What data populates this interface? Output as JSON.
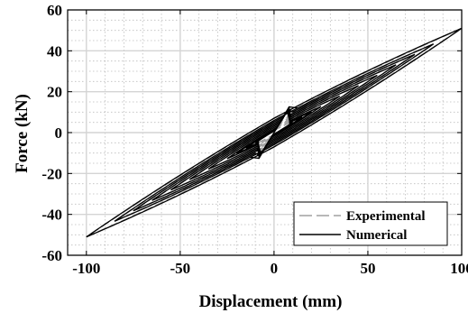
{
  "chart_data": {
    "type": "line",
    "xlabel": "Displacement (mm)",
    "ylabel": "Force (kN)",
    "xlim": [
      -110,
      100
    ],
    "ylim": [
      -60,
      60
    ],
    "x_ticks": [
      -100,
      -50,
      0,
      50,
      100
    ],
    "y_ticks": [
      -60,
      -40,
      -20,
      0,
      20,
      40,
      60
    ],
    "x_tick_labels": [
      "-100",
      "-50",
      "0",
      "50",
      "100"
    ],
    "y_tick_labels": [
      "-60",
      "-40",
      "-20",
      "0",
      "20",
      "40",
      "60"
    ],
    "grid": true,
    "legend_position": "bottom-right",
    "series": [
      {
        "name": "Experimental",
        "style": "dashed",
        "color": "#a0a0a0",
        "amplitudes": [
          15,
          25,
          35,
          45,
          55,
          65,
          75,
          85,
          100
        ],
        "envelope_force_at_max_disp": 51,
        "envelope_force_at_min_disp": -51,
        "zero_disp_force_offset": 3,
        "loop_half_width": 4
      },
      {
        "name": "Numerical",
        "style": "solid",
        "color": "#000000",
        "amplitudes": [
          10,
          15,
          20,
          25,
          35,
          45,
          55,
          65,
          75,
          85,
          100
        ],
        "envelope_force_at_max_disp": 51,
        "envelope_force_at_min_disp": -51,
        "yield_disp": 8,
        "yield_force": 12,
        "zero_disp_force_offset": 2,
        "loop_half_width": 5
      }
    ]
  }
}
